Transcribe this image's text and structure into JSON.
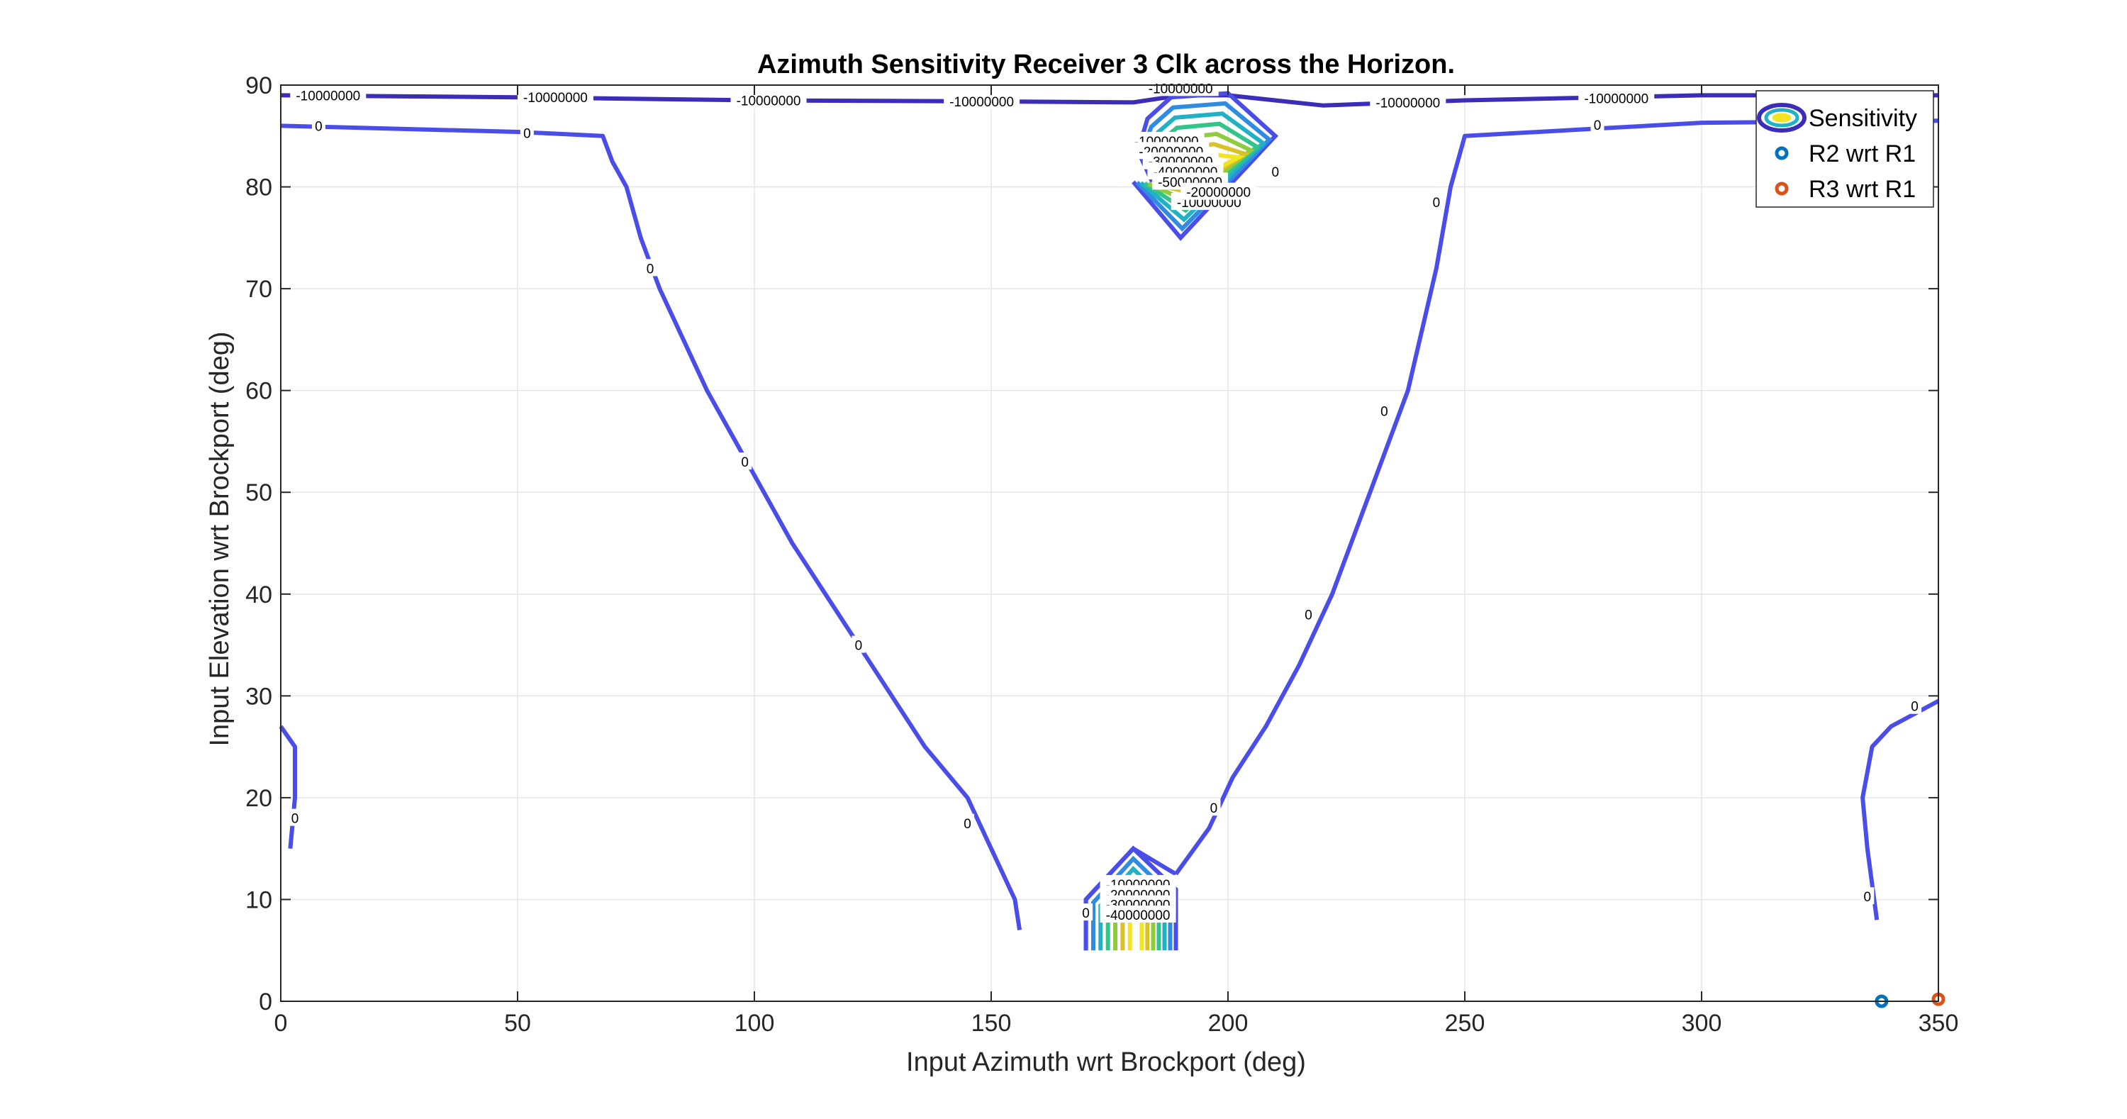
{
  "chart_data": {
    "type": "contour",
    "title": "Azimuth Sensitivity Receiver 3 Clk across the Horizon.",
    "xlabel": "Input Azimuth wrt Brockport (deg)",
    "ylabel": "Input Elevation wrt Brockport (deg)",
    "xlim": [
      0,
      350
    ],
    "ylim": [
      0,
      90
    ],
    "xticks": [
      0,
      50,
      100,
      150,
      200,
      250,
      300,
      350
    ],
    "yticks": [
      0,
      10,
      20,
      30,
      40,
      50,
      60,
      70,
      80,
      90
    ],
    "grid": true,
    "legend_position": "top-right",
    "legend": [
      {
        "label": "Sensitivity",
        "marker": "contour"
      },
      {
        "label": "R2 wrt R1",
        "marker": "circle",
        "color": "#0072bd"
      },
      {
        "label": "R3 wrt R1",
        "marker": "circle",
        "color": "#d95319"
      }
    ],
    "contour_lines": [
      {
        "level": "-10000000",
        "color": "#3b2db8",
        "points": [
          [
            0,
            89
          ],
          [
            50,
            88.8
          ],
          [
            100,
            88.5
          ],
          [
            150,
            88.4
          ],
          [
            180,
            88.3
          ],
          [
            190,
            89
          ],
          [
            200,
            89
          ],
          [
            220,
            88
          ],
          [
            250,
            88.5
          ],
          [
            300,
            89
          ],
          [
            340,
            89
          ],
          [
            350,
            89
          ]
        ]
      },
      {
        "level": "0",
        "color": "#4a4de8",
        "points": [
          [
            0,
            86
          ],
          [
            50,
            85.4
          ],
          [
            68,
            85
          ],
          [
            70,
            82.5
          ],
          [
            73,
            80
          ],
          [
            76,
            75
          ],
          [
            80,
            70
          ],
          [
            85,
            65
          ],
          [
            90,
            60
          ],
          [
            96,
            55
          ],
          [
            102,
            50
          ],
          [
            108,
            45
          ],
          [
            115,
            40
          ],
          [
            122,
            35
          ],
          [
            129,
            30
          ],
          [
            136,
            25
          ],
          [
            145,
            20
          ],
          [
            150,
            15
          ],
          [
            155,
            10
          ],
          [
            156,
            7
          ]
        ]
      },
      {
        "level": "0",
        "color": "#4a4de8",
        "points": [
          [
            189,
            12.5
          ],
          [
            196,
            17
          ],
          [
            201,
            22
          ],
          [
            208,
            27
          ],
          [
            215,
            33
          ],
          [
            222,
            40
          ],
          [
            230,
            50
          ],
          [
            238,
            60
          ],
          [
            244,
            72
          ],
          [
            247,
            80
          ],
          [
            250,
            85
          ],
          [
            300,
            86.3
          ],
          [
            350,
            86.5
          ]
        ]
      },
      {
        "level": "0",
        "color": "#4a4de8",
        "points": [
          [
            0,
            27
          ],
          [
            3,
            25
          ],
          [
            3,
            20
          ],
          [
            2,
            15
          ]
        ]
      },
      {
        "level": "0",
        "color": "#4a4de8",
        "points": [
          [
            337,
            8
          ],
          [
            335,
            15
          ],
          [
            334,
            20
          ],
          [
            336,
            25
          ],
          [
            340,
            27
          ],
          [
            350,
            29.5
          ]
        ]
      },
      {
        "level": "0",
        "color": "#4a4de8",
        "points": [
          [
            170,
            5
          ],
          [
            170,
            10
          ],
          [
            180,
            15
          ],
          [
            189,
            12.5
          ]
        ]
      }
    ],
    "contour_clusters": [
      {
        "id": "bottom",
        "nested_levels": [
          "-10000000",
          "-20000000",
          "-30000000",
          "-40000000",
          "-50000000"
        ],
        "region": {
          "x": [
            170,
            189
          ],
          "y": [
            5,
            15
          ]
        }
      },
      {
        "id": "top",
        "nested_levels": [
          "-10000000",
          "-20000000",
          "-30000000",
          "-40000000",
          "-50000000"
        ],
        "region": {
          "x": [
            180,
            210
          ],
          "y": [
            75,
            90
          ]
        }
      }
    ],
    "contour_labels": [
      {
        "text": "-10000000",
        "x": 10,
        "y": 89
      },
      {
        "text": "-10000000",
        "x": 58,
        "y": 88.8
      },
      {
        "text": "-10000000",
        "x": 103,
        "y": 88.5
      },
      {
        "text": "-10000000",
        "x": 148,
        "y": 88.4
      },
      {
        "text": "-10000000",
        "x": 190,
        "y": 89.7
      },
      {
        "text": "-10000000",
        "x": 238,
        "y": 88.3
      },
      {
        "text": "-10000000",
        "x": 282,
        "y": 88.7
      },
      {
        "text": "-10000000",
        "x": 333,
        "y": 88.9
      },
      {
        "text": "0",
        "x": 8,
        "y": 86
      },
      {
        "text": "0",
        "x": 52,
        "y": 85.3
      },
      {
        "text": "0",
        "x": 78,
        "y": 72
      },
      {
        "text": "0",
        "x": 98,
        "y": 53
      },
      {
        "text": "0",
        "x": 122,
        "y": 35
      },
      {
        "text": "0",
        "x": 145,
        "y": 17.5
      },
      {
        "text": "0",
        "x": 3,
        "y": 18
      },
      {
        "text": "0",
        "x": 170,
        "y": 8.7
      },
      {
        "text": "0",
        "x": 197,
        "y": 19
      },
      {
        "text": "0",
        "x": 217,
        "y": 38
      },
      {
        "text": "0",
        "x": 233,
        "y": 58
      },
      {
        "text": "0",
        "x": 244,
        "y": 78.5
      },
      {
        "text": "0",
        "x": 278,
        "y": 86.1
      },
      {
        "text": "0",
        "x": 183,
        "y": 84.5
      },
      {
        "text": "0",
        "x": 210,
        "y": 81.5
      },
      {
        "text": "0",
        "x": 335,
        "y": 10.3
      },
      {
        "text": "0",
        "x": 345,
        "y": 29
      },
      {
        "text": "-10000000",
        "x": 181,
        "y": 11.5
      },
      {
        "text": "-20000000",
        "x": 181,
        "y": 10.5
      },
      {
        "text": "-30000000",
        "x": 181,
        "y": 9.5
      },
      {
        "text": "-40000000",
        "x": 181,
        "y": 8.5
      },
      {
        "text": "-10000000",
        "x": 187,
        "y": 84.5
      },
      {
        "text": "-20000000",
        "x": 188,
        "y": 83.5
      },
      {
        "text": "-30000000",
        "x": 190,
        "y": 82.5
      },
      {
        "text": "-40000000",
        "x": 191,
        "y": 81.5
      },
      {
        "text": "-50000000",
        "x": 192,
        "y": 80.5
      },
      {
        "text": "-10000000",
        "x": 196,
        "y": 78.5
      },
      {
        "text": "-20000000",
        "x": 198,
        "y": 79.5
      }
    ],
    "series": [
      {
        "name": "R2 wrt R1",
        "color": "#0072bd",
        "x": [
          338
        ],
        "y": [
          0
        ]
      },
      {
        "name": "R3 wrt R1",
        "color": "#d95319",
        "x": [
          350
        ],
        "y": [
          0.2
        ]
      }
    ]
  }
}
